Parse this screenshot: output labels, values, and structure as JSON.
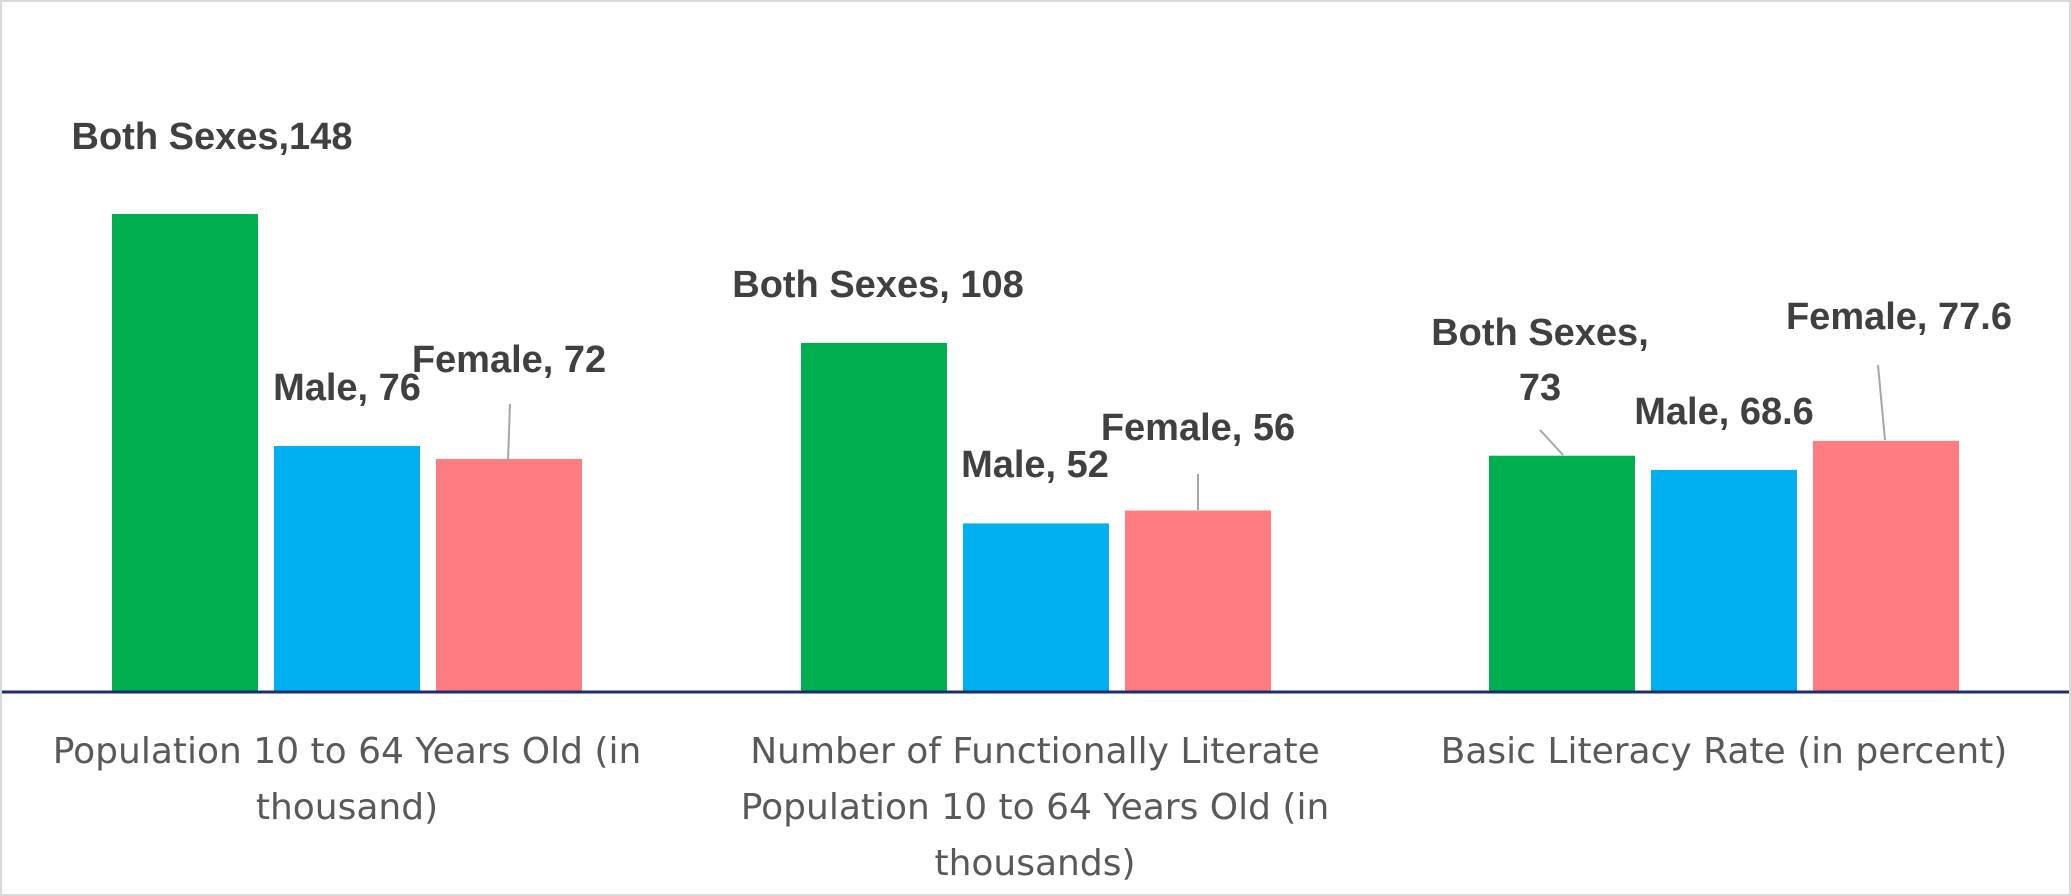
{
  "chart_data": {
    "type": "bar",
    "categories": [
      [
        "Population 10 to 64 Years Old  (in",
        "thousand)"
      ],
      [
        "Number of Functionally Literate",
        "Population 10 to 64 Years Old (in",
        "thousands)"
      ],
      [
        "Basic Literacy Rate (in percent)"
      ]
    ],
    "series": [
      {
        "name": "Both Sexes",
        "color": "#00b050",
        "values": [
          148,
          108,
          73
        ]
      },
      {
        "name": "Male",
        "color": "#00b0f0",
        "values": [
          76,
          52,
          68.6
        ]
      },
      {
        "name": "Female",
        "color": "#ff7c80",
        "values": [
          72,
          56,
          77.6
        ]
      }
    ],
    "data_labels": [
      [
        [
          "Both Sexes,148"
        ],
        [
          "Both Sexes, 108"
        ],
        [
          "Both Sexes,",
          "73"
        ]
      ],
      [
        [
          "Male, 76"
        ],
        [
          "Male, 52"
        ],
        [
          "Male, 68.6"
        ]
      ],
      [
        [
          "Female, 72"
        ],
        [
          "Female, 56"
        ],
        [
          "Female, 77.6"
        ]
      ]
    ],
    "ylim": [
      0,
      148
    ],
    "legend": "none",
    "grid": false,
    "axis_color": "#1f2d6b"
  }
}
